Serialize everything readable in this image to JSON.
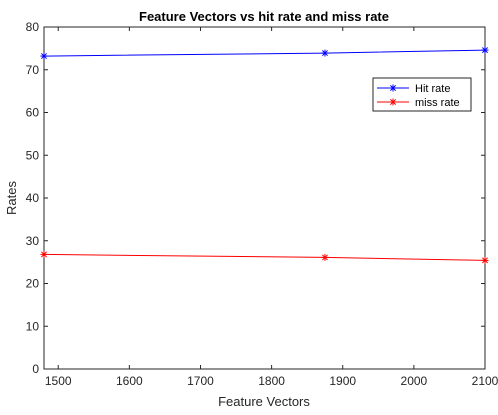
{
  "chart_data": {
    "type": "line",
    "title": "Feature Vectors vs hit rate and miss rate",
    "xlabel": "Feature Vectors",
    "ylabel": "Rates",
    "xlim": [
      1480,
      2100
    ],
    "ylim": [
      0,
      80
    ],
    "xticks": [
      1500,
      1600,
      1700,
      1800,
      1900,
      2000,
      2100
    ],
    "yticks": [
      0,
      10,
      20,
      30,
      40,
      50,
      60,
      70,
      80
    ],
    "grid": false,
    "legend_position": "top-right",
    "x": [
      1480,
      1875,
      2100
    ],
    "series": [
      {
        "name": "Hit rate",
        "color": "#0000ff",
        "marker": "asterisk",
        "values": [
          73.2,
          73.9,
          74.6
        ]
      },
      {
        "name": "miss rate",
        "color": "#ff0000",
        "marker": "asterisk",
        "values": [
          26.8,
          26.1,
          25.4
        ]
      }
    ]
  }
}
